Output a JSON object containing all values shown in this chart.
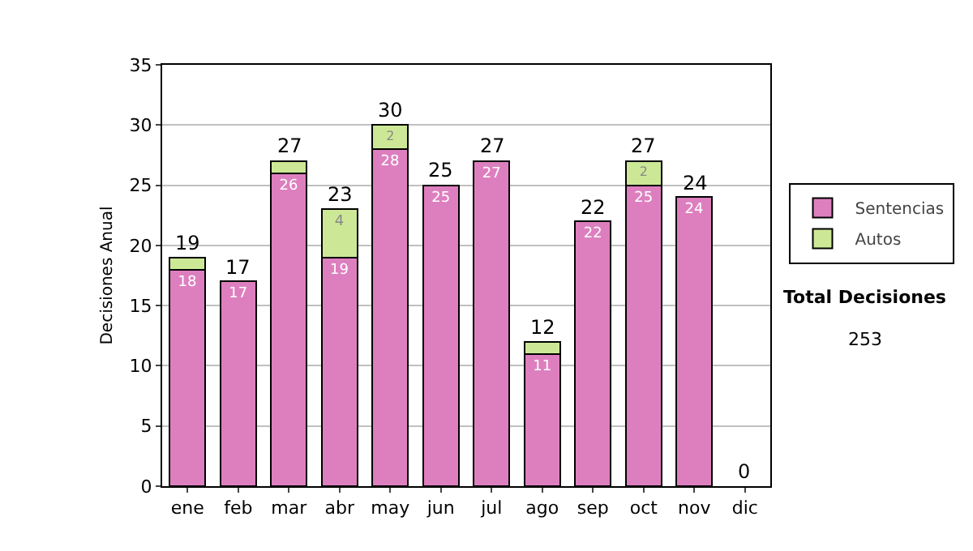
{
  "chart_data": {
    "type": "bar",
    "stacked": true,
    "ylabel": "Decisiones Anual",
    "categories": [
      "ene",
      "feb",
      "mar",
      "abr",
      "may",
      "jun",
      "jul",
      "ago",
      "sep",
      "oct",
      "nov",
      "dic"
    ],
    "series": [
      {
        "name": "Sentencias",
        "color": "#dd7fbf",
        "values": [
          18,
          17,
          26,
          19,
          28,
          25,
          27,
          11,
          22,
          25,
          24,
          0
        ],
        "value_labels": [
          "18",
          "17",
          "26",
          "19",
          "28",
          "25",
          "27",
          "11",
          "22",
          "25",
          "24",
          null
        ]
      },
      {
        "name": "Autos",
        "color": "#cce896",
        "values": [
          1,
          0,
          1,
          4,
          2,
          0,
          0,
          1,
          0,
          2,
          0,
          0
        ],
        "value_labels": [
          null,
          null,
          null,
          "4",
          "2",
          null,
          null,
          null,
          null,
          "2",
          null,
          null
        ]
      }
    ],
    "totals": [
      "19",
      "17",
      "27",
      "23",
      "30",
      "25",
      "27",
      "12",
      "22",
      "27",
      "24",
      "0"
    ],
    "ylim": [
      0,
      35
    ],
    "yticks": [
      0,
      5,
      10,
      15,
      20,
      25,
      30,
      35
    ],
    "grid": "y",
    "legend": "right",
    "annotations": [
      "Total Decisiones",
      "253"
    ]
  }
}
